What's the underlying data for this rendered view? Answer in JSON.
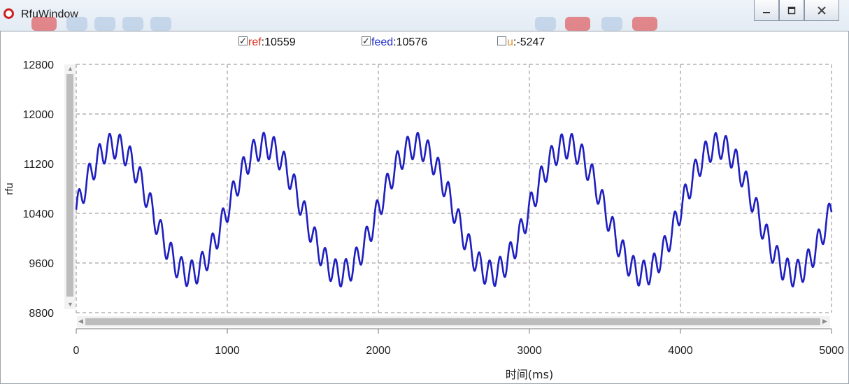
{
  "window": {
    "title": "RfuWindow"
  },
  "legend": [
    {
      "key": "ref",
      "value": "10559",
      "checked": true,
      "color": "#e0301e"
    },
    {
      "key": "feed",
      "value": "10576",
      "checked": true,
      "color": "#1f2fc8"
    },
    {
      "key": "u",
      "value": "-5247",
      "checked": false,
      "color": "#e0902a"
    }
  ],
  "chart_data": {
    "type": "line",
    "ylabel": "rfu",
    "xlabel": "时间(ms)",
    "xlim": [
      0,
      5000
    ],
    "ylim": [
      8800,
      12800
    ],
    "xticks": [
      0,
      1000,
      2000,
      3000,
      4000,
      5000
    ],
    "yticks": [
      8800,
      9600,
      10400,
      11200,
      12000,
      12800
    ],
    "grid": true,
    "series": [
      {
        "name": "feed",
        "color": "#1f1fc0",
        "period_ms": 1000,
        "mean": 10460,
        "amplitude": 1030,
        "ripple_period_ms": 68,
        "ripple_amplitude": 210
      }
    ]
  }
}
